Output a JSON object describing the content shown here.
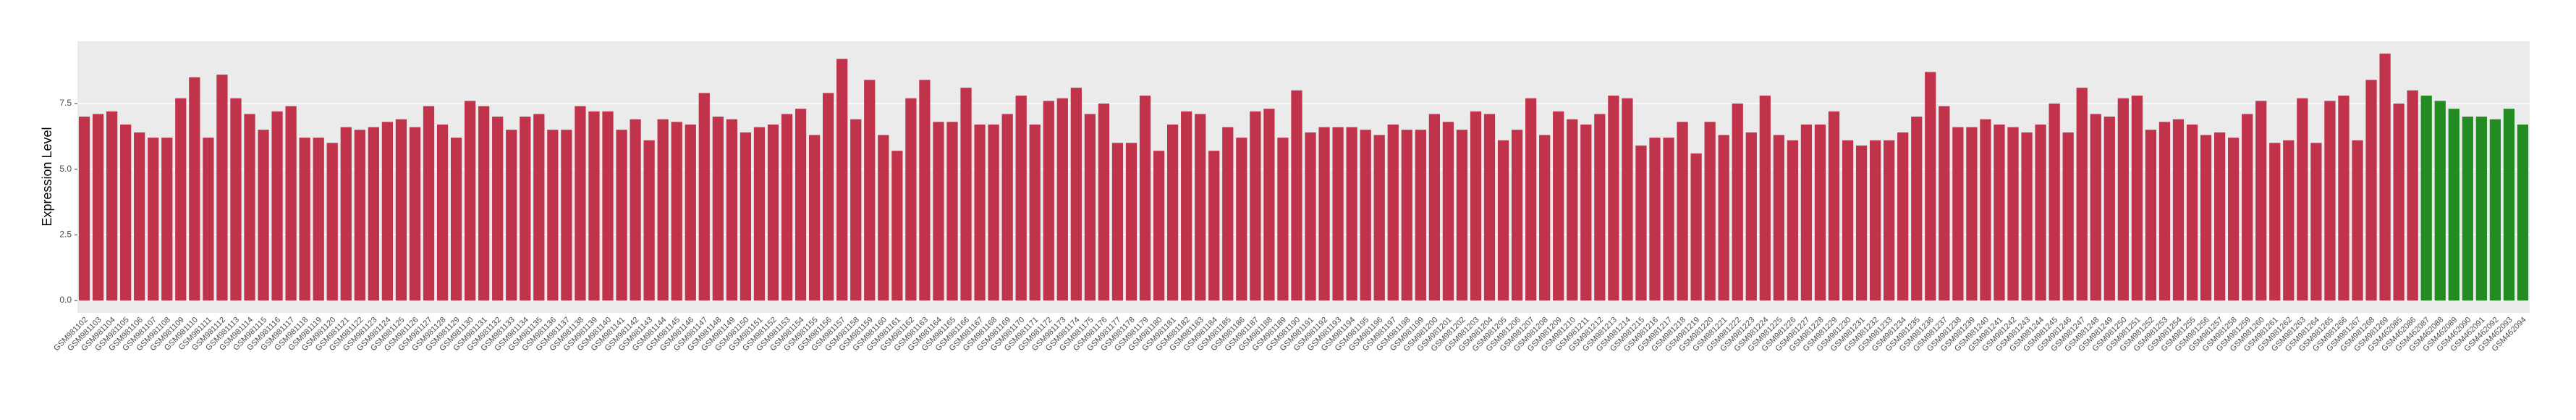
{
  "chart_data": {
    "type": "bar",
    "y_label": "Expression Level",
    "categories": [
      "GSM981102",
      "GSM981103",
      "GSM981104",
      "GSM981105",
      "GSM981106",
      "GSM981107",
      "GSM981108",
      "GSM981109",
      "GSM981110",
      "GSM981111",
      "GSM981112",
      "GSM981113",
      "GSM981114",
      "GSM981115",
      "GSM981116",
      "GSM981117",
      "GSM981118",
      "GSM981119",
      "GSM981120",
      "GSM981121",
      "GSM981122",
      "GSM981123",
      "GSM981124",
      "GSM981125",
      "GSM981126",
      "GSM981127",
      "GSM981128",
      "GSM981129",
      "GSM981130",
      "GSM981131",
      "GSM981132",
      "GSM981133",
      "GSM981134",
      "GSM981135",
      "GSM981136",
      "GSM981137",
      "GSM981138",
      "GSM981139",
      "GSM981140",
      "GSM981141",
      "GSM981142",
      "GSM981143",
      "GSM981144",
      "GSM981145",
      "GSM981146",
      "GSM981147",
      "GSM981148",
      "GSM981149",
      "GSM981150",
      "GSM981151",
      "GSM981152",
      "GSM981153",
      "GSM981154",
      "GSM981155",
      "GSM981156",
      "GSM981157",
      "GSM981158",
      "GSM981159",
      "GSM981160",
      "GSM981161",
      "GSM981162",
      "GSM981163",
      "GSM981164",
      "GSM981165",
      "GSM981166",
      "GSM981167",
      "GSM981168",
      "GSM981169",
      "GSM981170",
      "GSM981171",
      "GSM981172",
      "GSM981173",
      "GSM981174",
      "GSM981175",
      "GSM981176",
      "GSM981177",
      "GSM981178",
      "GSM981179",
      "GSM981180",
      "GSM981181",
      "GSM981182",
      "GSM981183",
      "GSM981184",
      "GSM981185",
      "GSM981186",
      "GSM981187",
      "GSM981188",
      "GSM981189",
      "GSM981190",
      "GSM981191",
      "GSM981192",
      "GSM981193",
      "GSM981194",
      "GSM981195",
      "GSM981196",
      "GSM981197",
      "GSM981198",
      "GSM981199",
      "GSM981200",
      "GSM981201",
      "GSM981202",
      "GSM981203",
      "GSM981204",
      "GSM981205",
      "GSM981206",
      "GSM981207",
      "GSM981208",
      "GSM981209",
      "GSM981210",
      "GSM981211",
      "GSM981212",
      "GSM981213",
      "GSM981214",
      "GSM981215",
      "GSM981216",
      "GSM981217",
      "GSM981218",
      "GSM981219",
      "GSM981220",
      "GSM981221",
      "GSM981222",
      "GSM981223",
      "GSM981224",
      "GSM981225",
      "GSM981226",
      "GSM981227",
      "GSM981228",
      "GSM981229",
      "GSM981230",
      "GSM981231",
      "GSM981232",
      "GSM981233",
      "GSM981234",
      "GSM981235",
      "GSM981236",
      "GSM981237",
      "GSM981238",
      "GSM981239",
      "GSM981240",
      "GSM981241",
      "GSM981242",
      "GSM981243",
      "GSM981244",
      "GSM981245",
      "GSM981246",
      "GSM981247",
      "GSM981248",
      "GSM981249",
      "GSM981250",
      "GSM981251",
      "GSM981252",
      "GSM981253",
      "GSM981254",
      "GSM981255",
      "GSM981256",
      "GSM981257",
      "GSM981258",
      "GSM981259",
      "GSM981260",
      "GSM981261",
      "GSM981262",
      "GSM981263",
      "GSM981264",
      "GSM981265",
      "GSM981266",
      "GSM981267",
      "GSM981268",
      "GSM981269",
      "GSM462085",
      "GSM462086",
      "GSM462087",
      "GSM462088",
      "GSM462089",
      "GSM462090",
      "GSM462091",
      "GSM462092",
      "GSM462093",
      "GSM462094"
    ],
    "values": [
      7.0,
      7.1,
      7.2,
      6.7,
      6.4,
      6.2,
      6.2,
      7.7,
      8.5,
      6.2,
      8.6,
      7.7,
      7.1,
      6.5,
      7.2,
      7.4,
      6.2,
      6.2,
      6.0,
      6.6,
      6.5,
      6.6,
      6.8,
      6.9,
      6.6,
      7.4,
      6.7,
      6.2,
      7.6,
      7.4,
      7.0,
      6.5,
      7.0,
      7.1,
      6.5,
      6.5,
      7.4,
      7.2,
      7.2,
      6.5,
      6.9,
      6.1,
      6.9,
      6.8,
      6.7,
      7.9,
      7.0,
      6.9,
      6.4,
      6.6,
      6.7,
      7.1,
      7.3,
      6.3,
      7.9,
      9.2,
      6.9,
      8.4,
      6.3,
      5.7,
      7.7,
      8.4,
      6.8,
      6.8,
      8.1,
      6.7,
      6.7,
      7.1,
      7.8,
      6.7,
      7.6,
      7.7,
      8.1,
      7.1,
      7.5,
      6.0,
      6.0,
      7.8,
      5.7,
      6.7,
      7.2,
      7.1,
      5.7,
      6.6,
      6.2,
      7.2,
      7.3,
      6.2,
      8.0,
      6.4,
      6.6,
      6.6,
      6.6,
      6.5,
      6.3,
      6.7,
      6.5,
      6.5,
      7.1,
      6.8,
      6.5,
      7.2,
      7.1,
      6.1,
      6.5,
      7.7,
      6.3,
      7.2,
      6.9,
      6.7,
      7.1,
      7.8,
      7.7,
      5.9,
      6.2,
      6.2,
      6.8,
      5.6,
      6.8,
      6.3,
      7.5,
      6.4,
      7.8,
      6.3,
      6.1,
      6.7,
      6.7,
      7.2,
      6.1,
      5.9,
      6.1,
      6.1,
      6.4,
      7.0,
      8.7,
      7.4,
      6.6,
      6.6,
      6.9,
      6.7,
      6.6,
      6.4,
      6.7,
      7.5,
      6.4,
      8.1,
      7.1,
      7.0,
      7.7,
      7.8,
      6.5,
      6.8,
      6.9,
      6.7,
      6.3,
      6.4,
      6.2,
      7.1,
      7.6,
      6.0,
      6.1,
      7.7,
      6.0,
      7.6,
      7.8,
      6.1,
      8.4,
      9.4,
      7.5,
      8.0,
      7.8,
      7.6,
      7.3,
      7.0,
      7.0,
      6.9,
      7.3,
      6.7
    ],
    "bar_colors": [
      "#c0334a",
      "#c0334a",
      "#c0334a",
      "#c0334a",
      "#c0334a",
      "#c0334a",
      "#c0334a",
      "#c0334a",
      "#c0334a",
      "#c0334a",
      "#c0334a",
      "#c0334a",
      "#c0334a",
      "#c0334a",
      "#c0334a",
      "#c0334a",
      "#c0334a",
      "#c0334a",
      "#c0334a",
      "#c0334a",
      "#c0334a",
      "#c0334a",
      "#c0334a",
      "#c0334a",
      "#c0334a",
      "#c0334a",
      "#c0334a",
      "#c0334a",
      "#c0334a",
      "#c0334a",
      "#c0334a",
      "#c0334a",
      "#c0334a",
      "#c0334a",
      "#c0334a",
      "#c0334a",
      "#c0334a",
      "#c0334a",
      "#c0334a",
      "#c0334a",
      "#c0334a",
      "#c0334a",
      "#c0334a",
      "#c0334a",
      "#c0334a",
      "#c0334a",
      "#c0334a",
      "#c0334a",
      "#c0334a",
      "#c0334a",
      "#c0334a",
      "#c0334a",
      "#c0334a",
      "#c0334a",
      "#c0334a",
      "#c0334a",
      "#c0334a",
      "#c0334a",
      "#c0334a",
      "#c0334a",
      "#c0334a",
      "#c0334a",
      "#c0334a",
      "#c0334a",
      "#c0334a",
      "#c0334a",
      "#c0334a",
      "#c0334a",
      "#c0334a",
      "#c0334a",
      "#c0334a",
      "#c0334a",
      "#c0334a",
      "#c0334a",
      "#c0334a",
      "#c0334a",
      "#c0334a",
      "#c0334a",
      "#c0334a",
      "#c0334a",
      "#c0334a",
      "#c0334a",
      "#c0334a",
      "#c0334a",
      "#c0334a",
      "#c0334a",
      "#c0334a",
      "#c0334a",
      "#c0334a",
      "#c0334a",
      "#c0334a",
      "#c0334a",
      "#c0334a",
      "#c0334a",
      "#c0334a",
      "#c0334a",
      "#c0334a",
      "#c0334a",
      "#c0334a",
      "#c0334a",
      "#c0334a",
      "#c0334a",
      "#c0334a",
      "#c0334a",
      "#c0334a",
      "#c0334a",
      "#c0334a",
      "#c0334a",
      "#c0334a",
      "#c0334a",
      "#c0334a",
      "#c0334a",
      "#c0334a",
      "#c0334a",
      "#c0334a",
      "#c0334a",
      "#c0334a",
      "#c0334a",
      "#c0334a",
      "#c0334a",
      "#c0334a",
      "#c0334a",
      "#c0334a",
      "#c0334a",
      "#c0334a",
      "#c0334a",
      "#c0334a",
      "#c0334a",
      "#c0334a",
      "#c0334a",
      "#c0334a",
      "#c0334a",
      "#c0334a",
      "#c0334a",
      "#c0334a",
      "#c0334a",
      "#c0334a",
      "#c0334a",
      "#c0334a",
      "#c0334a",
      "#c0334a",
      "#c0334a",
      "#c0334a",
      "#c0334a",
      "#c0334a",
      "#c0334a",
      "#c0334a",
      "#c0334a",
      "#c0334a",
      "#c0334a",
      "#c0334a",
      "#c0334a",
      "#c0334a",
      "#c0334a",
      "#c0334a",
      "#c0334a",
      "#c0334a",
      "#c0334a",
      "#c0334a",
      "#c0334a",
      "#c0334a",
      "#c0334a",
      "#c0334a",
      "#c0334a",
      "#c0334a",
      "#c0334a",
      "#c0334a",
      "#c0334a",
      "#c0334a",
      "#c0334a",
      "#228b22",
      "#228b22",
      "#228b22",
      "#228b22",
      "#228b22",
      "#228b22",
      "#228b22",
      "#228b22",
      "#228b22",
      "#228b22"
    ],
    "ylim": [
      -0.47,
      9.87
    ],
    "yticks": [
      {
        "value": 0,
        "label": "0.0"
      },
      2.5,
      {
        "value": 5,
        "label": "5.0"
      },
      7.5
    ],
    "grid": true
  }
}
